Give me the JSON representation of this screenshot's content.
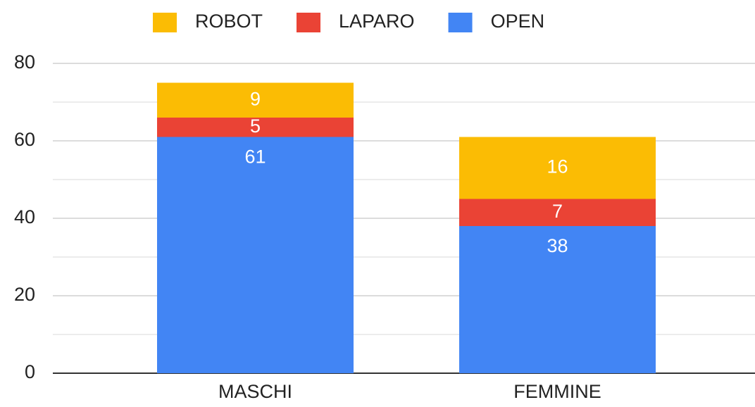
{
  "chart_data": {
    "type": "stacked_bar",
    "categories": [
      "MASCHI",
      "FEMMINE"
    ],
    "series": [
      {
        "name": "OPEN",
        "color": "#4285f4",
        "values": [
          61,
          38
        ]
      },
      {
        "name": "LAPARO",
        "color": "#ea4335",
        "values": [
          5,
          7
        ]
      },
      {
        "name": "ROBOT",
        "color": "#fbbc04",
        "values": [
          9,
          16
        ]
      }
    ],
    "ylim": [
      0,
      80
    ],
    "yticks": [
      0,
      20,
      40,
      60,
      80
    ],
    "minor_yticks": [
      10,
      30,
      50,
      70
    ],
    "grid": true,
    "legend": "top"
  }
}
